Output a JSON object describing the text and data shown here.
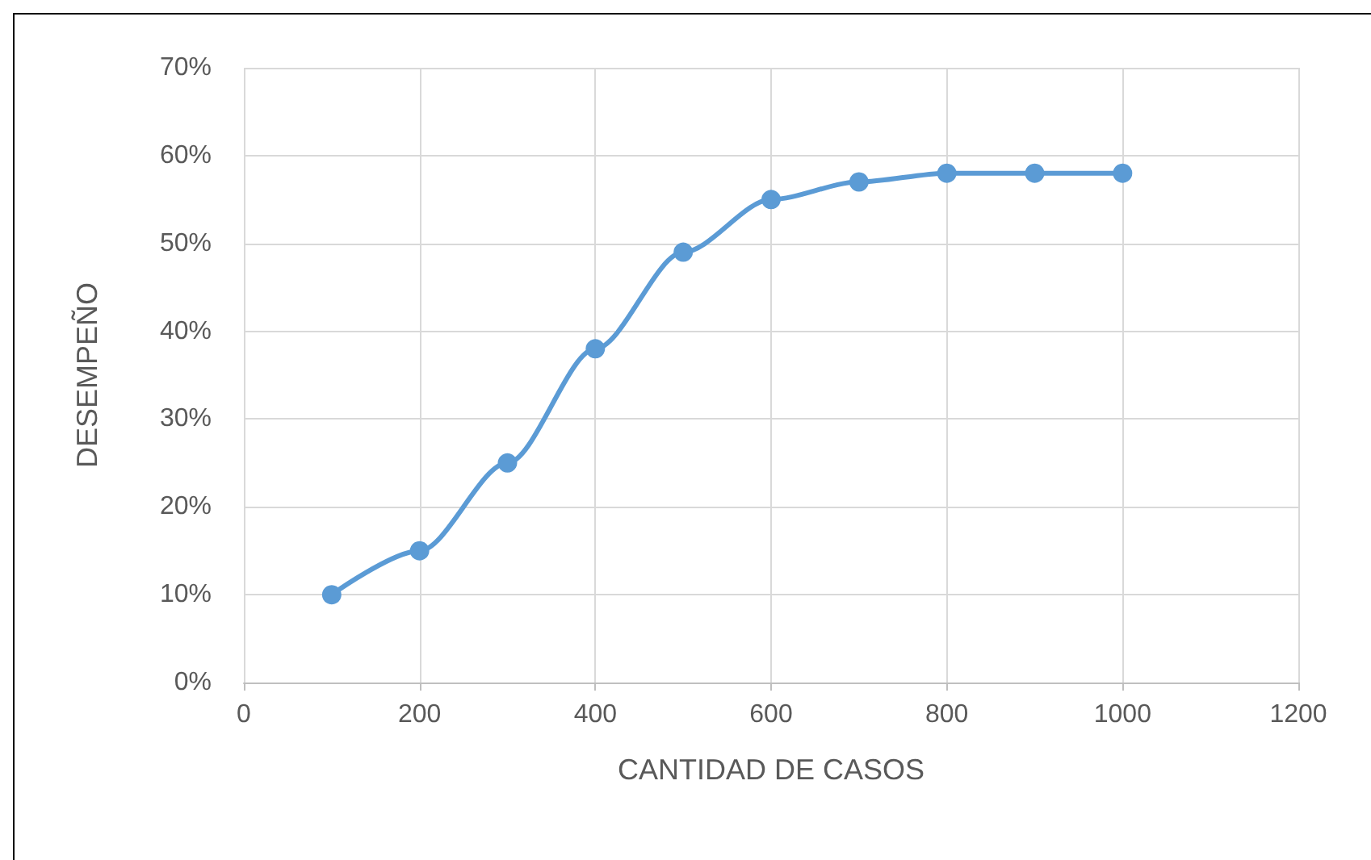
{
  "chart_data": {
    "type": "line",
    "xlabel": "CANTIDAD DE CASOS",
    "ylabel": "DESEMPEÑO",
    "x": [
      100,
      200,
      300,
      400,
      500,
      600,
      700,
      800,
      900,
      1000
    ],
    "series": [
      {
        "color": "#5b9bd5",
        "values": [
          10,
          15,
          25,
          38,
          49,
          55,
          57,
          58,
          58,
          58
        ]
      }
    ],
    "xlim": [
      0,
      1200
    ],
    "xticks": [
      0,
      200,
      400,
      600,
      800,
      1000,
      1200
    ],
    "ylim": [
      0,
      70
    ],
    "yticks": [
      {
        "value": 0,
        "label": "0%"
      },
      {
        "value": 10,
        "label": "10%"
      },
      {
        "value": 20,
        "label": "20%"
      },
      {
        "value": 30,
        "label": "30%"
      },
      {
        "value": 40,
        "label": "40%"
      },
      {
        "value": 50,
        "label": "50%"
      },
      {
        "value": 60,
        "label": "60%"
      },
      {
        "value": 70,
        "label": "70%"
      }
    ],
    "grid": true,
    "marker": "circle",
    "line_style": "solid"
  }
}
